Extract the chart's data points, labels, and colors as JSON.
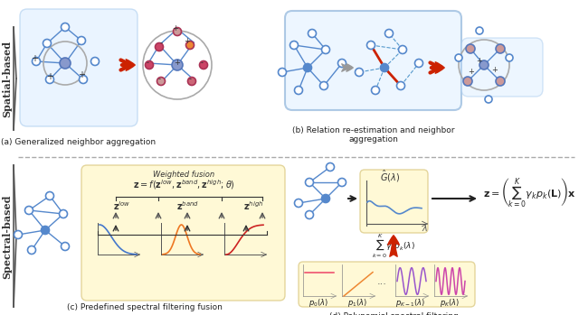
{
  "fig_width": 6.4,
  "fig_height": 3.49,
  "bg_color": "#ffffff",
  "panel_bg_light_blue": "#ddeeff",
  "panel_bg_yellow": "#fff8cc",
  "section_label_spatial": "Spatial-based",
  "section_label_spectral": "Spectral-based",
  "caption_a": "(a) Generalized neighbor aggregation",
  "caption_b": "(b) Relation re-estimation and neighbor\naggregation",
  "caption_c": "(c) Predefined spectral filtering fusion",
  "caption_d": "(d) Polynomial spectral filtering",
  "node_color_open": "#ffffff",
  "node_color_blue": "#5588cc",
  "node_color_pink": "#cc99bb",
  "node_color_orange": "#ee8833",
  "node_color_dark_pink": "#cc4466",
  "edge_color": "#5588cc",
  "arrow_red": "#cc2200",
  "arrow_gray": "#888888",
  "low_filter_color": "#4477cc",
  "band_filter_color": "#ee7722",
  "high_filter_color": "#cc2222",
  "poly_color_0": "#ee4466",
  "poly_color_1": "#ee8833",
  "poly_color_k1": "#9955cc",
  "poly_color_k": "#cc44aa"
}
